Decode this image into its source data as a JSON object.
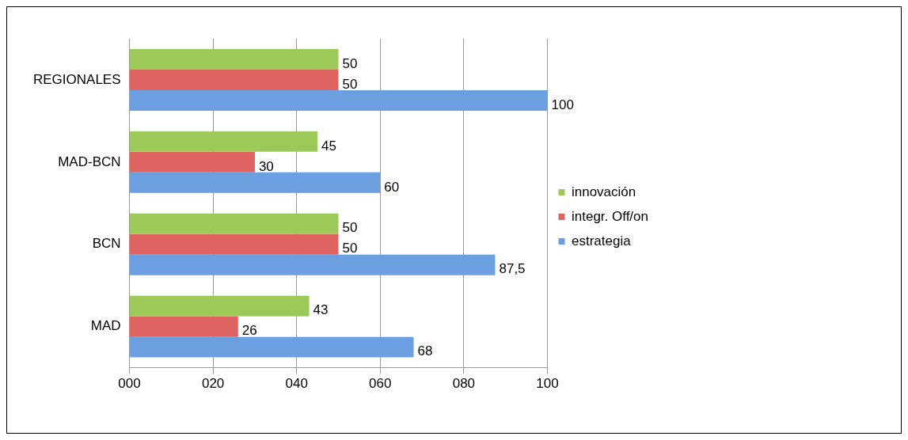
{
  "chart_data": {
    "type": "bar",
    "orientation": "horizontal",
    "categories": [
      "REGIONALES",
      "MAD-BCN",
      "BCN",
      "MAD"
    ],
    "series": [
      {
        "name": "innovación",
        "color": "#9cc958",
        "values": [
          50,
          45,
          50,
          43
        ],
        "value_labels": [
          "50",
          "45",
          "50",
          "43"
        ]
      },
      {
        "name": "integr. Off/on",
        "color": "#de6461",
        "values": [
          50,
          30,
          50,
          26
        ],
        "value_labels": [
          "50",
          "30",
          "50",
          "26"
        ]
      },
      {
        "name": "estrategia",
        "color": "#6b9fe0",
        "values": [
          100,
          60,
          87.5,
          68
        ],
        "value_labels": [
          "100",
          "60",
          "87,5",
          "68"
        ]
      }
    ],
    "xlim": [
      0,
      100
    ],
    "xticks": [
      {
        "value": 0,
        "label": "000"
      },
      {
        "value": 20,
        "label": "020"
      },
      {
        "value": 40,
        "label": "040"
      },
      {
        "value": 60,
        "label": "060"
      },
      {
        "value": 80,
        "label": "080"
      },
      {
        "value": 100,
        "label": "100"
      }
    ],
    "grid": "x",
    "legend": "right"
  }
}
